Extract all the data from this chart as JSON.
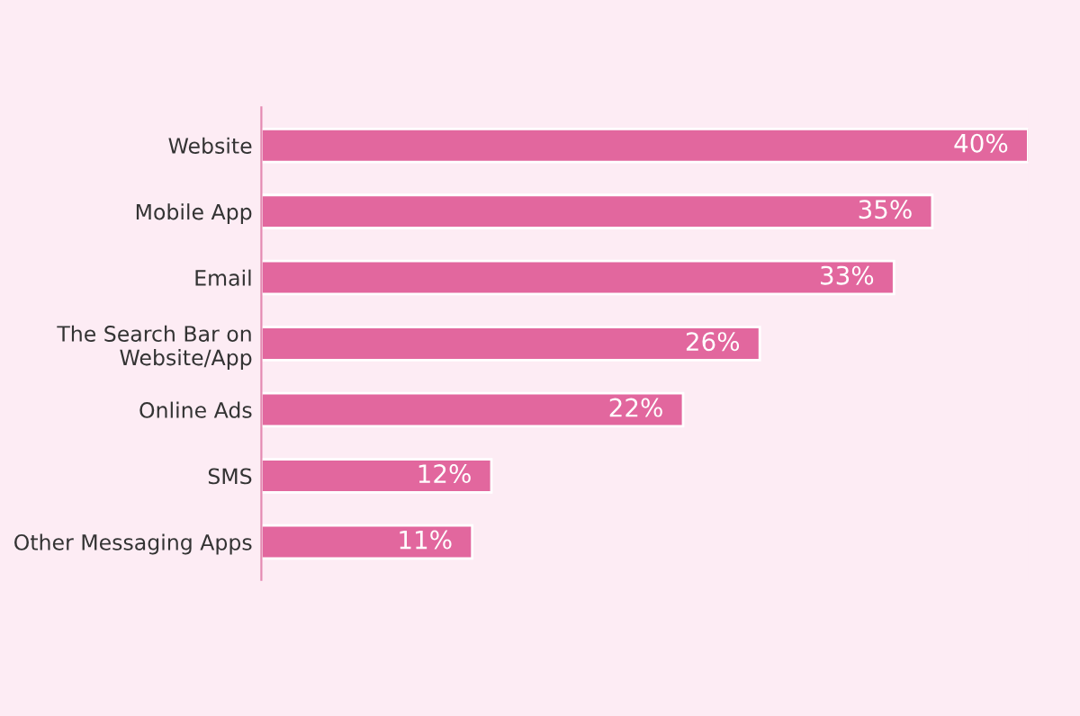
{
  "chart_data": {
    "type": "bar",
    "orientation": "horizontal",
    "categories": [
      "Website",
      "Mobile App",
      "Email",
      "The Search Bar on\nWebsite/App",
      "Online Ads",
      "SMS",
      "Other Messaging Apps"
    ],
    "values": [
      40,
      35,
      33,
      26,
      22,
      12,
      11
    ],
    "value_labels": [
      "40%",
      "35%",
      "33%",
      "26%",
      "22%",
      "12%",
      "11%"
    ],
    "color": "#e2679e",
    "grid": false,
    "legend": false
  }
}
